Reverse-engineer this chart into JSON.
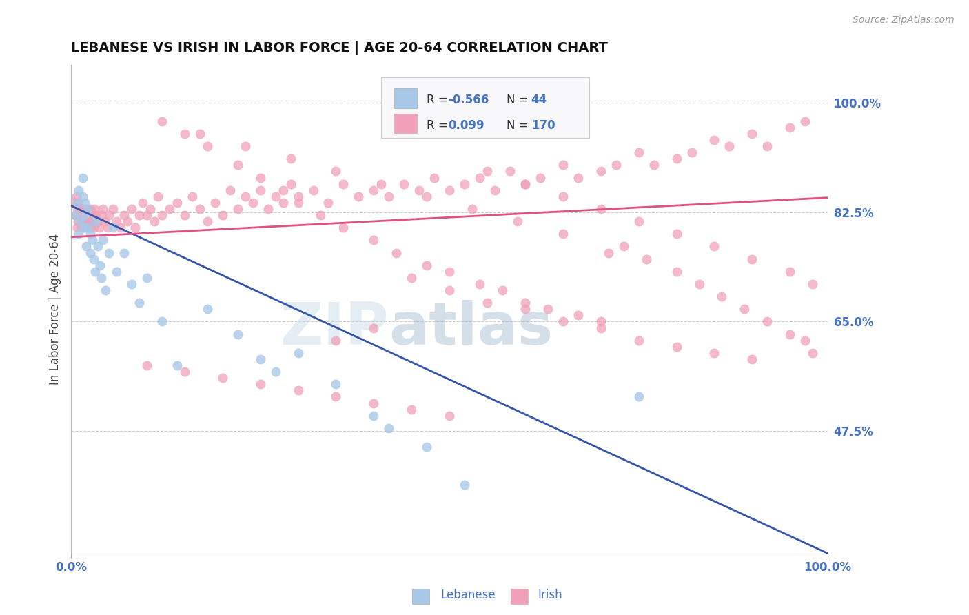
{
  "title": "LEBANESE VS IRISH IN LABOR FORCE | AGE 20-64 CORRELATION CHART",
  "source": "Source: ZipAtlas.com",
  "ylabel": "In Labor Force | Age 20-64",
  "xlim": [
    0.0,
    1.0
  ],
  "ylim": [
    0.28,
    1.06
  ],
  "yticks": [
    0.475,
    0.65,
    0.825,
    1.0
  ],
  "ytick_labels": [
    "47.5%",
    "65.0%",
    "82.5%",
    "100.0%"
  ],
  "color_blue": "#a8c8e8",
  "color_pink": "#f0a0b8",
  "color_blue_line": "#3355aa",
  "color_pink_line": "#e05080",
  "color_text_blue": "#4472c4",
  "watermark_color": "#c8dde8",
  "blue_trend": [
    0.0,
    1.0,
    0.835,
    0.28
  ],
  "pink_trend": [
    0.0,
    1.0,
    0.785,
    0.848
  ],
  "scatter_blue_x": [
    0.005,
    0.008,
    0.01,
    0.01,
    0.012,
    0.015,
    0.015,
    0.016,
    0.018,
    0.018,
    0.02,
    0.022,
    0.022,
    0.025,
    0.025,
    0.028,
    0.03,
    0.032,
    0.032,
    0.035,
    0.038,
    0.04,
    0.042,
    0.045,
    0.05,
    0.055,
    0.06,
    0.07,
    0.08,
    0.09,
    0.1,
    0.12,
    0.14,
    0.18,
    0.22,
    0.25,
    0.27,
    0.3,
    0.35,
    0.4,
    0.42,
    0.47,
    0.52,
    0.75
  ],
  "scatter_blue_y": [
    0.82,
    0.84,
    0.86,
    0.79,
    0.81,
    0.88,
    0.85,
    0.8,
    0.82,
    0.84,
    0.77,
    0.8,
    0.83,
    0.76,
    0.79,
    0.78,
    0.75,
    0.73,
    0.81,
    0.77,
    0.74,
    0.72,
    0.78,
    0.7,
    0.76,
    0.8,
    0.73,
    0.76,
    0.71,
    0.68,
    0.72,
    0.65,
    0.58,
    0.67,
    0.63,
    0.59,
    0.57,
    0.6,
    0.55,
    0.5,
    0.48,
    0.45,
    0.39,
    0.53
  ],
  "scatter_pink_x": [
    0.005,
    0.006,
    0.007,
    0.008,
    0.008,
    0.009,
    0.01,
    0.01,
    0.011,
    0.012,
    0.013,
    0.014,
    0.015,
    0.015,
    0.016,
    0.017,
    0.018,
    0.019,
    0.02,
    0.02,
    0.021,
    0.022,
    0.023,
    0.024,
    0.025,
    0.026,
    0.027,
    0.028,
    0.03,
    0.031,
    0.033,
    0.035,
    0.037,
    0.04,
    0.042,
    0.045,
    0.048,
    0.05,
    0.055,
    0.06,
    0.065,
    0.07,
    0.075,
    0.08,
    0.085,
    0.09,
    0.095,
    0.1,
    0.105,
    0.11,
    0.115,
    0.12,
    0.13,
    0.14,
    0.15,
    0.16,
    0.17,
    0.18,
    0.19,
    0.2,
    0.21,
    0.22,
    0.23,
    0.24,
    0.25,
    0.26,
    0.27,
    0.28,
    0.29,
    0.3,
    0.32,
    0.34,
    0.36,
    0.38,
    0.4,
    0.42,
    0.44,
    0.46,
    0.48,
    0.5,
    0.52,
    0.54,
    0.56,
    0.58,
    0.6,
    0.62,
    0.65,
    0.67,
    0.7,
    0.72,
    0.75,
    0.77,
    0.8,
    0.82,
    0.85,
    0.87,
    0.9,
    0.92,
    0.95,
    0.97,
    0.15,
    0.18,
    0.22,
    0.25,
    0.28,
    0.3,
    0.33,
    0.36,
    0.4,
    0.43,
    0.47,
    0.5,
    0.54,
    0.57,
    0.6,
    0.63,
    0.67,
    0.7,
    0.73,
    0.76,
    0.8,
    0.83,
    0.86,
    0.89,
    0.92,
    0.95,
    0.97,
    0.98,
    0.35,
    0.4,
    0.45,
    0.5,
    0.55,
    0.6,
    0.65,
    0.7,
    0.75,
    0.8,
    0.85,
    0.9,
    0.1,
    0.15,
    0.2,
    0.25,
    0.3,
    0.35,
    0.4,
    0.45,
    0.5,
    0.55,
    0.6,
    0.65,
    0.7,
    0.75,
    0.8,
    0.85,
    0.9,
    0.95,
    0.98,
    0.12,
    0.17,
    0.23,
    0.29,
    0.35,
    0.41,
    0.47,
    0.53,
    0.59,
    0.65,
    0.71
  ],
  "scatter_pink_y": [
    0.84,
    0.82,
    0.85,
    0.8,
    0.83,
    0.81,
    0.84,
    0.82,
    0.83,
    0.81,
    0.8,
    0.82,
    0.81,
    0.83,
    0.8,
    0.82,
    0.81,
    0.8,
    0.83,
    0.82,
    0.81,
    0.8,
    0.82,
    0.81,
    0.83,
    0.8,
    0.82,
    0.81,
    0.8,
    0.83,
    0.82,
    0.81,
    0.8,
    0.82,
    0.83,
    0.81,
    0.8,
    0.82,
    0.83,
    0.81,
    0.8,
    0.82,
    0.81,
    0.83,
    0.8,
    0.82,
    0.84,
    0.82,
    0.83,
    0.81,
    0.85,
    0.82,
    0.83,
    0.84,
    0.82,
    0.85,
    0.83,
    0.81,
    0.84,
    0.82,
    0.86,
    0.83,
    0.85,
    0.84,
    0.86,
    0.83,
    0.85,
    0.84,
    0.87,
    0.85,
    0.86,
    0.84,
    0.87,
    0.85,
    0.86,
    0.85,
    0.87,
    0.86,
    0.88,
    0.86,
    0.87,
    0.88,
    0.86,
    0.89,
    0.87,
    0.88,
    0.9,
    0.88,
    0.89,
    0.9,
    0.92,
    0.9,
    0.91,
    0.92,
    0.94,
    0.93,
    0.95,
    0.93,
    0.96,
    0.97,
    0.95,
    0.93,
    0.9,
    0.88,
    0.86,
    0.84,
    0.82,
    0.8,
    0.78,
    0.76,
    0.74,
    0.73,
    0.71,
    0.7,
    0.68,
    0.67,
    0.66,
    0.65,
    0.77,
    0.75,
    0.73,
    0.71,
    0.69,
    0.67,
    0.65,
    0.63,
    0.62,
    0.6,
    0.62,
    0.64,
    0.72,
    0.7,
    0.68,
    0.67,
    0.65,
    0.64,
    0.62,
    0.61,
    0.6,
    0.59,
    0.58,
    0.57,
    0.56,
    0.55,
    0.54,
    0.53,
    0.52,
    0.51,
    0.5,
    0.89,
    0.87,
    0.85,
    0.83,
    0.81,
    0.79,
    0.77,
    0.75,
    0.73,
    0.71,
    0.97,
    0.95,
    0.93,
    0.91,
    0.89,
    0.87,
    0.85,
    0.83,
    0.81,
    0.79,
    0.76
  ]
}
